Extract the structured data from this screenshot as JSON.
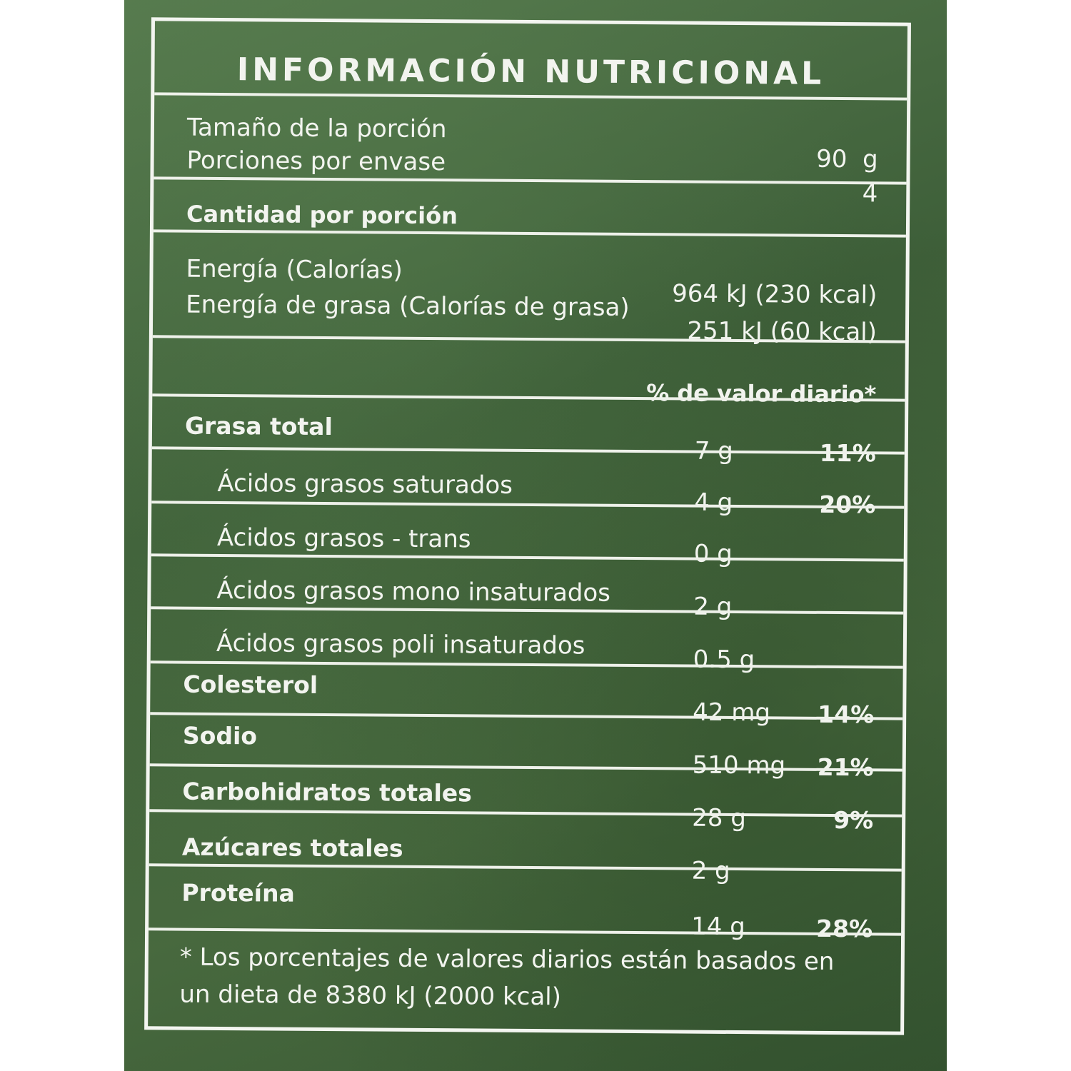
{
  "label": {
    "title": "INFORMACIÓN NUTRICIONAL",
    "serving_size_label": "Tamaño de la porción",
    "serving_size_value": "90  g",
    "servings_label": "Porciones por envase",
    "servings_value": "4",
    "amount_per_serving": "Cantidad por porción",
    "energy_label": "Energía (Calorías)",
    "energy_value": "964 kJ (230 kcal)",
    "fat_energy_label": "Energía de grasa (Calorías de grasa)",
    "fat_energy_value": "251 kJ (60 kcal)",
    "daily_value_header": "% de valor diario*",
    "nutrients": [
      {
        "name": "Grasa total",
        "amount": "7 g",
        "dv": "11%"
      },
      {
        "name": "Ácidos grasos saturados",
        "amount": "4 g",
        "dv": "20%"
      },
      {
        "name": "Ácidos grasos - trans",
        "amount": "0 g",
        "dv": ""
      },
      {
        "name": "Ácidos grasos mono insaturados",
        "amount": "2 g",
        "dv": ""
      },
      {
        "name": "Ácidos grasos poli insaturados",
        "amount": "0.5 g",
        "dv": ""
      },
      {
        "name": "Colesterol",
        "amount": "42 mg",
        "dv": "14%"
      },
      {
        "name": "Sodio",
        "amount": "510 mg",
        "dv": "21%"
      },
      {
        "name": "Carbohidratos totales",
        "amount": "28 g",
        "dv": "9%"
      },
      {
        "name": "Azúcares totales",
        "amount": "2 g",
        "dv": ""
      },
      {
        "name": "Proteína",
        "amount": "14 g",
        "dv": "28%"
      }
    ],
    "footnote_line1": "* Los porcentajes de valores diarios están basados en",
    "footnote_line2": "un dieta de 8380 kJ (2000 kcal)"
  }
}
